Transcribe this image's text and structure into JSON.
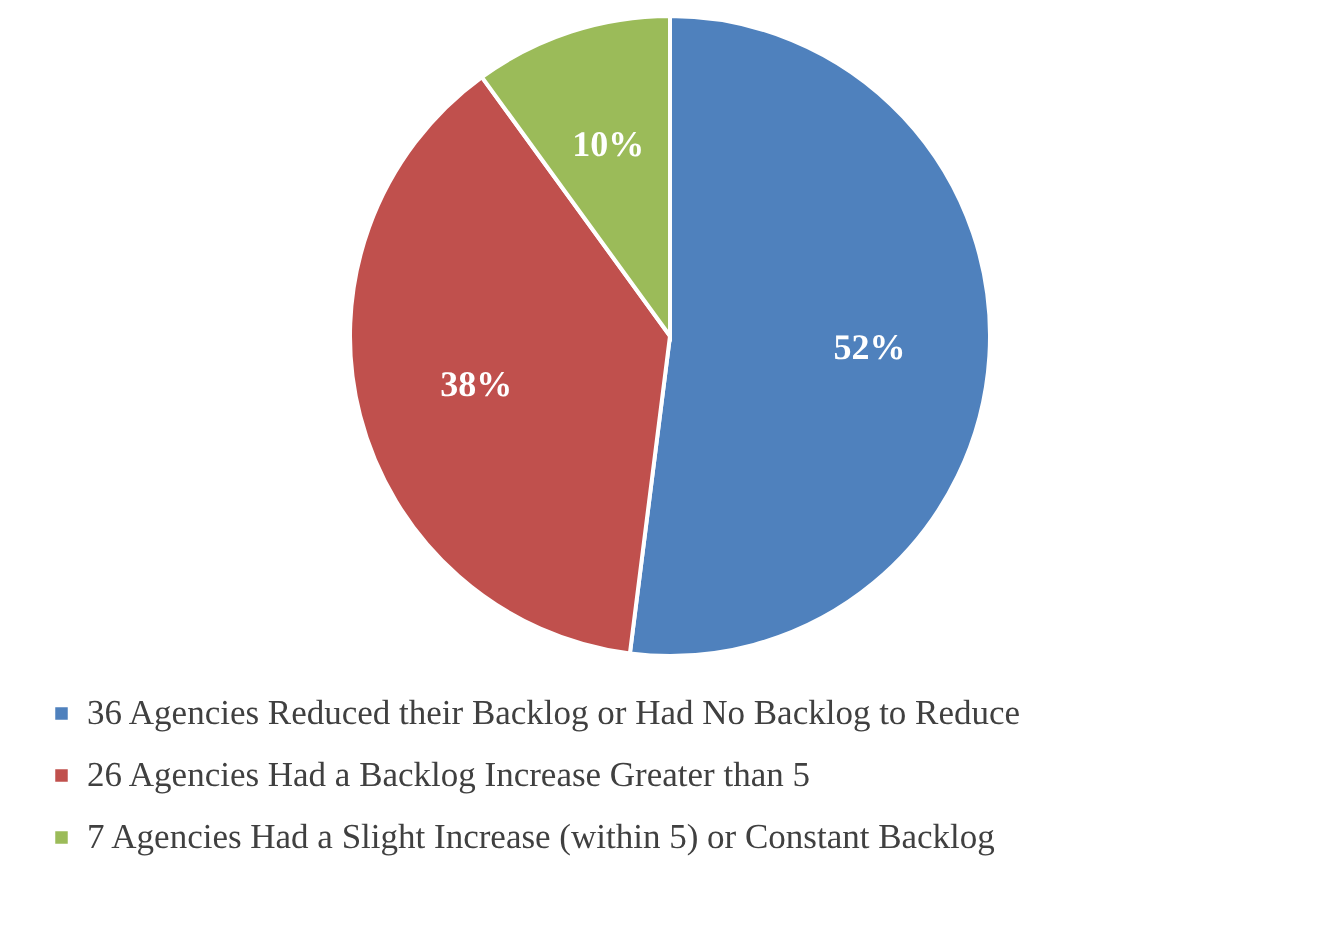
{
  "chart_data": {
    "type": "pie",
    "categories": [
      "36 Agencies Reduced their Backlog or Had No Backlog to Reduce",
      "26 Agencies Had a Backlog Increase Greater than 5",
      "7 Agencies Had a Slight Increase (within 5) or Constant Backlog"
    ],
    "values": [
      52,
      38,
      10
    ],
    "colors": [
      "#4f81bd",
      "#c0504d",
      "#9bbb59"
    ],
    "value_labels": [
      "52%",
      "38%",
      "10%"
    ],
    "legend": "bottom"
  }
}
